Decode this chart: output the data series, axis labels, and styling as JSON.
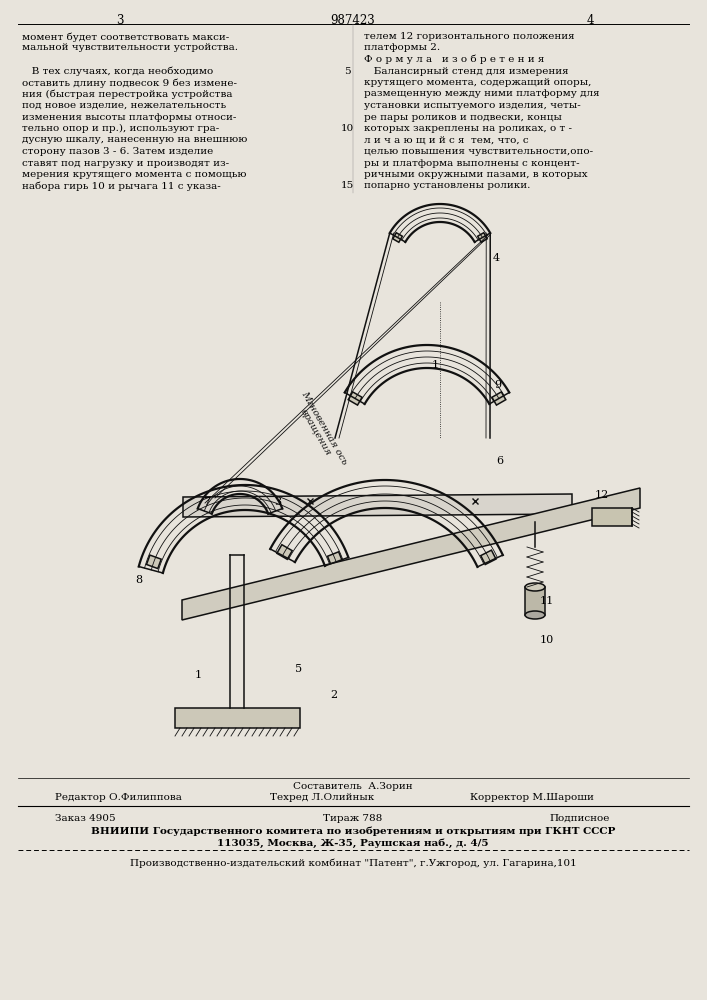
{
  "page_color": "#e8e4dc",
  "title_number": "987423",
  "page_left": "3",
  "page_right": "4",
  "col1_text": [
    "момент будет соответствовать макси-",
    "мальной чувствительности устройства.",
    "",
    "   В тех случаях, когда необходимо",
    "оставить длину подвесок 9 без измене-",
    "ния (быстрая перестройка устройства",
    "под новое изделие, нежелательность",
    "изменения высоты платформы относи-",
    "тельно опор и пр.), используют гра-",
    "дусную шкалу, нанесенную на внешнюю",
    "сторону пазов 3 - 6. Затем изделие",
    "ставят под нагрузку и производят из-",
    "мерения крутящего момента с помощью",
    "набора гирь 10 и рычага 11 с указа-"
  ],
  "col1_linenums": [
    "",
    "",
    "",
    "5",
    "",
    "",
    "",
    "",
    "10",
    "",
    "",
    "",
    "",
    "15"
  ],
  "col2_text": [
    "телем 12 горизонтального положения",
    "платформы 2.",
    "Ф о р м у л а   и з о б р е т е н и я",
    "   Балансирный стенд для измерения",
    "крутящего момента, содержащий опоры,",
    "размещенную между ними платформу для",
    "установки испытуемого изделия, четы-",
    "ре пары роликов и подвески, концы",
    "которых закреплены на роликах, о т -",
    "л и ч а ю щ и й с я  тем, что, с",
    "целью повышения чувствительности,опо-",
    "ры и платформа выполнены с концент-",
    "ричными окружными пазами, в которых",
    "попарно установлены ролики."
  ],
  "footer_sestavitel": "Составитель  А.Зорин",
  "footer_redaktor": "Редактор О.Филиппова",
  "footer_tehred": "Техред Л.Олийнык",
  "footer_korrektor": "Корректор М.Шароши",
  "footer_zakaz": "Заказ 4905",
  "footer_tirazh": "Тираж 788",
  "footer_podpisnoe": "Подписное",
  "footer_vniiipi": "ВНИИПИ Государственного комитета по изобретениям и открытиям при ГКНТ СССР",
  "footer_address": "113035, Москва, Ж-35, Раушская наб., д. 4/5",
  "footer_kombinat": "Производственно-издательский комбинат \"Патент\", г.Ужгород, ул. Гагарина,101",
  "lc": "#111111",
  "lw_thick": 1.6,
  "lw_med": 1.1,
  "lw_thin": 0.6
}
